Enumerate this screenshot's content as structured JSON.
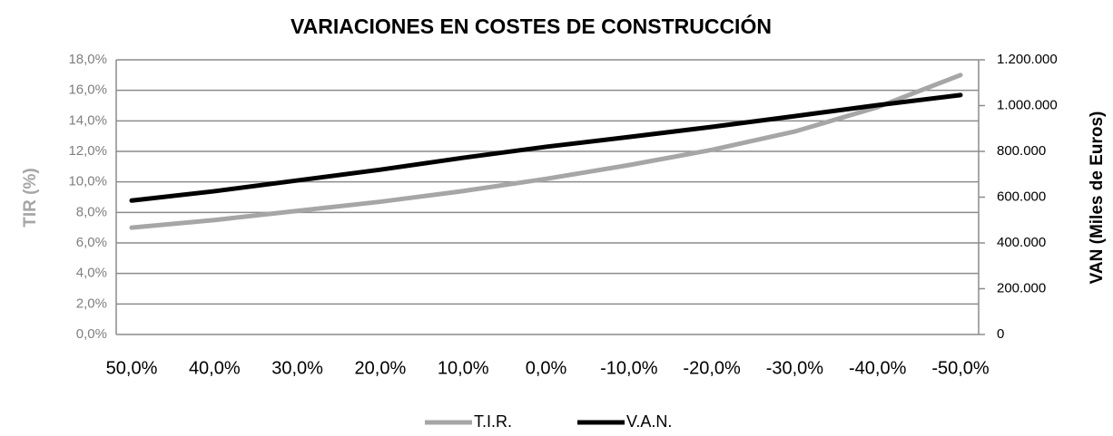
{
  "chart_data": {
    "type": "line",
    "title": "VARIACIONES EN COSTES DE CONSTRUCCIÓN",
    "ylabel": "TIR (%)",
    "y2label": "VAN (Miles de Euros)",
    "categories": [
      "50,0%",
      "40,0%",
      "30,0%",
      "20,0%",
      "10,0%",
      "0,0%",
      "-10,0%",
      "-20,0%",
      "-30,0%",
      "-40,0%",
      "-50,0%"
    ],
    "series": [
      {
        "name": "T.I.R.",
        "color": "#a6a6a6",
        "values": [
          7.0,
          7.5,
          8.1,
          8.7,
          9.4,
          10.2,
          11.1,
          12.1,
          13.3,
          14.9,
          17.0
        ]
      },
      {
        "name": "V.A.N.",
        "color": "#000000",
        "axis": "y2",
        "values": [
          585000,
          626000,
          673000,
          720000,
          772000,
          820000,
          863000,
          907000,
          954000,
          1002000,
          1046000
        ]
      }
    ],
    "ylim": [
      0,
      18
    ],
    "yticks": [
      {
        "value": 0,
        "label": "0,0%"
      },
      {
        "value": 2,
        "label": "2,0%"
      },
      {
        "value": 4,
        "label": "4,0%"
      },
      {
        "value": 6,
        "label": "6,0%"
      },
      {
        "value": 8,
        "label": "8,0%"
      },
      {
        "value": 10,
        "label": "10,0%"
      },
      {
        "value": 12,
        "label": "12,0%"
      },
      {
        "value": 14,
        "label": "14,0%"
      },
      {
        "value": 16,
        "label": "16,0%"
      },
      {
        "value": 18,
        "label": "18,0%"
      }
    ],
    "y2lim": [
      0,
      1200000
    ],
    "y2ticks": [
      0,
      {
        "value": 200000,
        "label": "200.000"
      },
      {
        "value": 400000,
        "label": "400.000"
      },
      {
        "value": 600000,
        "label": "600.000"
      },
      {
        "value": 800000,
        "label": "800.000"
      },
      {
        "value": 1000000,
        "label": "1.000.000"
      },
      {
        "value": 1200000,
        "label": "1.200.000"
      }
    ],
    "grid": true,
    "legend": "bottom"
  }
}
